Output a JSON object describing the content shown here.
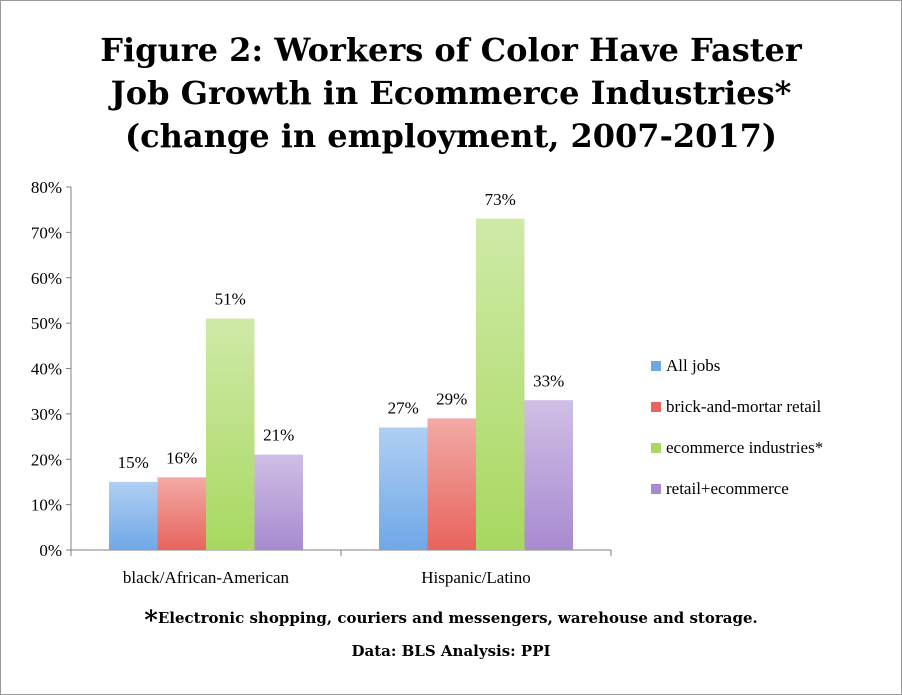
{
  "chart_data": {
    "type": "bar",
    "title": [
      "Figure 2: Workers of Color Have Faster",
      "Job Growth in Ecommerce Industries*",
      "(change in employment, 2007-2017)"
    ],
    "categories": [
      "black/African-American",
      "Hispanic/Latino"
    ],
    "series": [
      {
        "name": "All jobs",
        "values": [
          15,
          27
        ],
        "labels": [
          "15%",
          "27%"
        ],
        "color": "#6fa8e8"
      },
      {
        "name": "brick-and-mortar retail",
        "values": [
          16,
          29
        ],
        "labels": [
          "16%",
          "29%"
        ],
        "color": "#e8645c"
      },
      {
        "name": "ecommerce industries*",
        "values": [
          51,
          73
        ],
        "labels": [
          "51%",
          "73%"
        ],
        "color": "#a8d860"
      },
      {
        "name": "retail+ecommerce",
        "values": [
          21,
          33
        ],
        "labels": [
          "21%",
          "33%"
        ],
        "color": "#a88ad0"
      }
    ],
    "ylim": [
      0,
      80
    ],
    "yticks": [
      "0%",
      "10%",
      "20%",
      "30%",
      "40%",
      "50%",
      "60%",
      "70%",
      "80%"
    ],
    "grid": false,
    "legend_position": "right"
  },
  "footnote": {
    "star": "*",
    "text": "Electronic shopping, couriers and messengers, warehouse and storage.",
    "source": "Data: BLS  Analysis: PPI"
  }
}
